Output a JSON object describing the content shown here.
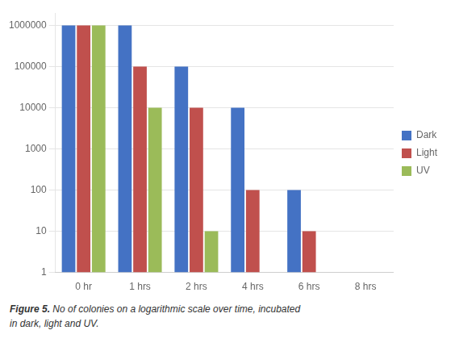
{
  "chart_data": {
    "type": "bar",
    "categories": [
      "0 hr",
      "1 hrs",
      "2 hrs",
      "4 hrs",
      "6 hrs",
      "8 hrs"
    ],
    "series": [
      {
        "name": "Dark",
        "color": "#4472C4",
        "values": [
          1000000,
          1000000,
          100000,
          10000,
          100,
          null
        ]
      },
      {
        "name": "Light",
        "color": "#C0504D",
        "values": [
          1000000,
          100000,
          10000,
          100,
          10,
          null
        ]
      },
      {
        "name": "UV",
        "color": "#9BBB59",
        "values": [
          1000000,
          10000,
          10,
          null,
          null,
          null
        ]
      }
    ],
    "log": "y",
    "ylim": [
      1,
      2000000
    ],
    "yticks": [
      1,
      10,
      100,
      1000,
      10000,
      100000,
      1000000
    ],
    "grid": true,
    "legend": "right",
    "annotations": [
      "Figure 5.",
      "No of colonies on a logarithmic scale over time, incubated",
      "in dark, light and UV."
    ]
  }
}
